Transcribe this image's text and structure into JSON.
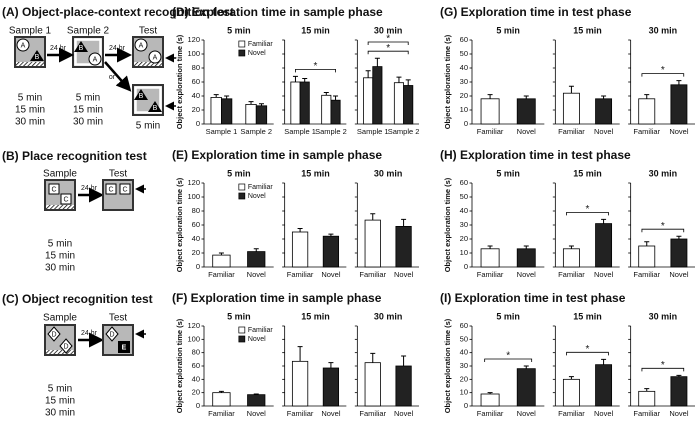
{
  "diagrams": [
    {
      "title": "(A) Object-place-context recognition test",
      "stages": [
        "Sample 1",
        "Sample 2",
        "Test"
      ],
      "delay": "24 hr",
      "or": "or",
      "objects": [
        "A",
        "B"
      ],
      "times": [
        "5 min",
        "15 min",
        "30 min"
      ],
      "test_time": "5 min"
    },
    {
      "title": "(B) Place recognition test",
      "stages": [
        "Sample",
        "Test"
      ],
      "delay": "24 hr",
      "objects": [
        "C"
      ],
      "times": [
        "5 min",
        "15 min",
        "30 min"
      ]
    },
    {
      "title": "(C) Object recognition test",
      "stages": [
        "Sample",
        "Test"
      ],
      "delay": "24 hr",
      "objects": [
        "D",
        "E"
      ],
      "times": [
        "5 min",
        "15 min",
        "30 min"
      ]
    }
  ],
  "chart_data": [
    {
      "type": "grouped_bar",
      "title": "(D) Exploration time in sample phase",
      "ylabel": "Object exploration time (s)",
      "ylim": [
        0,
        120
      ],
      "yticks": [
        0,
        20,
        40,
        60,
        80,
        100,
        120
      ],
      "series": [
        {
          "name": "Familiar",
          "color": "#ffffff"
        },
        {
          "name": "Novel",
          "color": "#222222"
        }
      ],
      "subplots": [
        {
          "title": "5 min",
          "categories": [
            "Sample 1",
            "Sample 2"
          ],
          "values": [
            [
              38,
              28
            ],
            [
              36,
              26
            ]
          ],
          "errors": [
            [
              4,
              4
            ],
            [
              4,
              3
            ]
          ]
        },
        {
          "title": "15 min",
          "categories": [
            "Sample 1",
            "Sample 2"
          ],
          "values": [
            [
              60,
              41
            ],
            [
              60,
              34
            ]
          ],
          "errors": [
            [
              8,
              4
            ],
            [
              5,
              6
            ]
          ],
          "significance": [
            "*"
          ]
        },
        {
          "title": "30 min",
          "categories": [
            "Sample 1",
            "Sample 2"
          ],
          "values": [
            [
              66,
              59
            ],
            [
              82,
              55
            ]
          ],
          "errors": [
            [
              10,
              8
            ],
            [
              12,
              8
            ]
          ],
          "significance": [
            "*",
            "*"
          ]
        }
      ]
    },
    {
      "type": "bar",
      "title": "(E) Exploration time in sample phase",
      "ylabel": "Object exploration time (s)",
      "ylim": [
        0,
        120
      ],
      "yticks": [
        0,
        20,
        40,
        60,
        80,
        100,
        120
      ],
      "colors": [
        "#ffffff",
        "#222222"
      ],
      "legend": [
        "Familiar",
        "Novel"
      ],
      "subplots": [
        {
          "title": "5 min",
          "categories": [
            "Familiar",
            "Novel"
          ],
          "values": [
            17,
            22
          ],
          "errors": [
            3,
            4
          ]
        },
        {
          "title": "15 min",
          "categories": [
            "Familiar",
            "Novel"
          ],
          "values": [
            50,
            44
          ],
          "errors": [
            5,
            3
          ]
        },
        {
          "title": "30 min",
          "categories": [
            "Familiar",
            "Novel"
          ],
          "values": [
            67,
            58
          ],
          "errors": [
            9,
            10
          ]
        }
      ]
    },
    {
      "type": "bar",
      "title": "(F) Exploration time in sample phase",
      "ylabel": "Object exploration time (s)",
      "ylim": [
        0,
        120
      ],
      "yticks": [
        0,
        20,
        40,
        60,
        80,
        100,
        120
      ],
      "colors": [
        "#ffffff",
        "#222222"
      ],
      "legend": [
        "Familiar",
        "Novel"
      ],
      "subplots": [
        {
          "title": "5 min",
          "categories": [
            "Familiar",
            "Novel"
          ],
          "values": [
            20,
            17
          ],
          "errors": [
            2,
            1
          ]
        },
        {
          "title": "15 min",
          "categories": [
            "Familiar",
            "Novel"
          ],
          "values": [
            67,
            57
          ],
          "errors": [
            22,
            8
          ]
        },
        {
          "title": "30 min",
          "categories": [
            "Familiar",
            "Novel"
          ],
          "values": [
            65,
            60
          ],
          "errors": [
            14,
            15
          ]
        }
      ]
    },
    {
      "type": "bar",
      "title": "(G) Exploration time in test phase",
      "ylabel": "Object exploration time (s)",
      "ylim": [
        0,
        60
      ],
      "yticks": [
        0,
        10,
        20,
        30,
        40,
        50,
        60
      ],
      "colors": [
        "#ffffff",
        "#222222"
      ],
      "subplots": [
        {
          "title": "5 min",
          "categories": [
            "Familiar",
            "Novel"
          ],
          "values": [
            18,
            18
          ],
          "errors": [
            3,
            2
          ]
        },
        {
          "title": "15 min",
          "categories": [
            "Familiar",
            "Novel"
          ],
          "values": [
            22,
            18
          ],
          "errors": [
            5,
            2
          ]
        },
        {
          "title": "30 min",
          "categories": [
            "Familiar",
            "Novel"
          ],
          "values": [
            18,
            28
          ],
          "errors": [
            3,
            3
          ],
          "significance": [
            "*"
          ]
        }
      ]
    },
    {
      "type": "bar",
      "title": "(H) Exploration time in test phase",
      "ylabel": "Object exploration time (s)",
      "ylim": [
        0,
        60
      ],
      "yticks": [
        0,
        10,
        20,
        30,
        40,
        50,
        60
      ],
      "colors": [
        "#ffffff",
        "#222222"
      ],
      "subplots": [
        {
          "title": "5 min",
          "categories": [
            "Familiar",
            "Novel"
          ],
          "values": [
            13,
            13
          ],
          "errors": [
            2,
            2
          ]
        },
        {
          "title": "15 min",
          "categories": [
            "Familiar",
            "Novel"
          ],
          "values": [
            13,
            31
          ],
          "errors": [
            2,
            3
          ],
          "significance": [
            "*"
          ]
        },
        {
          "title": "30 min",
          "categories": [
            "Familiar",
            "Novel"
          ],
          "values": [
            15,
            20
          ],
          "errors": [
            3,
            2
          ],
          "significance": [
            "*"
          ]
        }
      ]
    },
    {
      "type": "bar",
      "title": "(I) Exploration time in test phase",
      "ylabel": "Object exploration time (s)",
      "ylim": [
        0,
        60
      ],
      "yticks": [
        0,
        10,
        20,
        30,
        40,
        50,
        60
      ],
      "colors": [
        "#ffffff",
        "#222222"
      ],
      "subplots": [
        {
          "title": "5 min",
          "categories": [
            "Familiar",
            "Novel"
          ],
          "values": [
            9,
            28
          ],
          "errors": [
            1,
            2
          ],
          "significance": [
            "*"
          ]
        },
        {
          "title": "15 min",
          "categories": [
            "Familiar",
            "Novel"
          ],
          "values": [
            20,
            31
          ],
          "errors": [
            2,
            4
          ],
          "significance": [
            "*"
          ]
        },
        {
          "title": "30 min",
          "categories": [
            "Familiar",
            "Novel"
          ],
          "values": [
            11,
            22
          ],
          "errors": [
            2,
            1
          ],
          "significance": [
            "*"
          ]
        }
      ]
    }
  ]
}
